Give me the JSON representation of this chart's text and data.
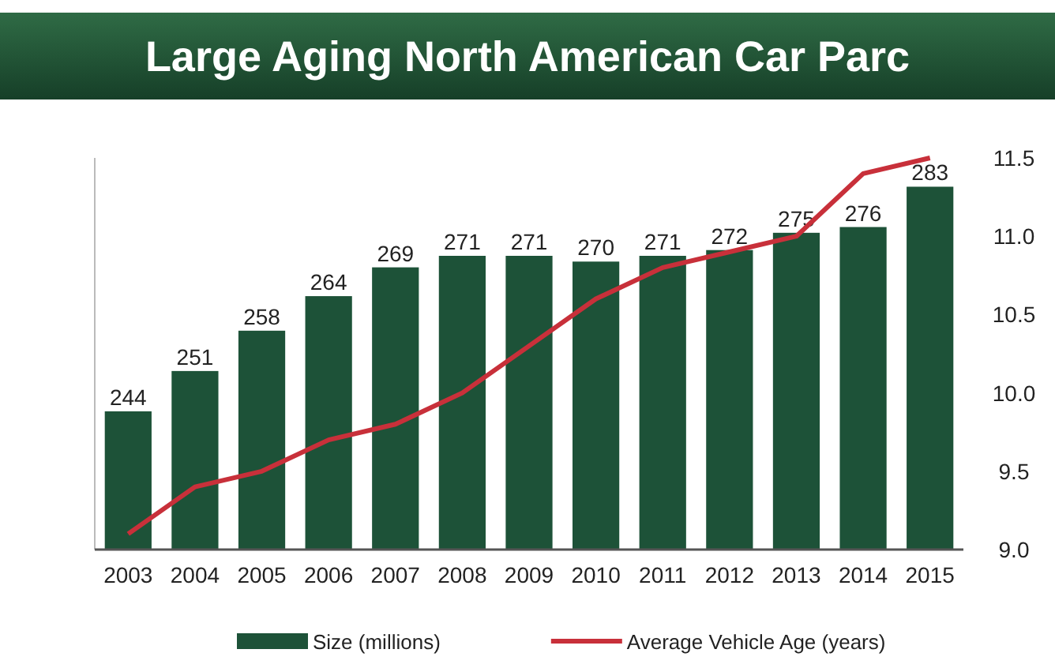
{
  "chart_data": {
    "type": "bar",
    "title": "Large Aging North American Car Parc",
    "categories": [
      "2003",
      "2004",
      "2005",
      "2006",
      "2007",
      "2008",
      "2009",
      "2010",
      "2011",
      "2012",
      "2013",
      "2014",
      "2015"
    ],
    "series": [
      {
        "name": "Size (millions)",
        "color": "#1d5238",
        "values": [
          244,
          251,
          258,
          264,
          269,
          271,
          271,
          270,
          271,
          272,
          275,
          276,
          283
        ],
        "value_labels": [
          "244",
          "251",
          "258",
          "264",
          "269",
          "271",
          "271",
          "270",
          "271",
          "272",
          "275",
          "276",
          "283"
        ]
      },
      {
        "name": "Average Vehicle Age (years)",
        "type": "line",
        "axis": "y2",
        "color": "#c8303a",
        "values": [
          9.1,
          9.4,
          9.5,
          9.7,
          9.8,
          10.0,
          10.3,
          10.6,
          10.8,
          10.9,
          11.0,
          11.4,
          11.5
        ]
      }
    ],
    "y2lim": [
      9.0,
      11.5
    ],
    "y2ticks": [
      {
        "value": 9.0,
        "label": "9.0"
      },
      {
        "value": 9.5,
        "label": "9.5"
      },
      {
        "value": 10.0,
        "label": "10.0"
      },
      {
        "value": 10.5,
        "label": "10.5"
      },
      {
        "value": 11.0,
        "label": "11.0"
      },
      {
        "value": 11.5,
        "label": "11.5"
      }
    ],
    "ylim": [
      220,
      288
    ],
    "legend": "bottom",
    "grid": false,
    "marker": "none",
    "line_style": "solid"
  }
}
